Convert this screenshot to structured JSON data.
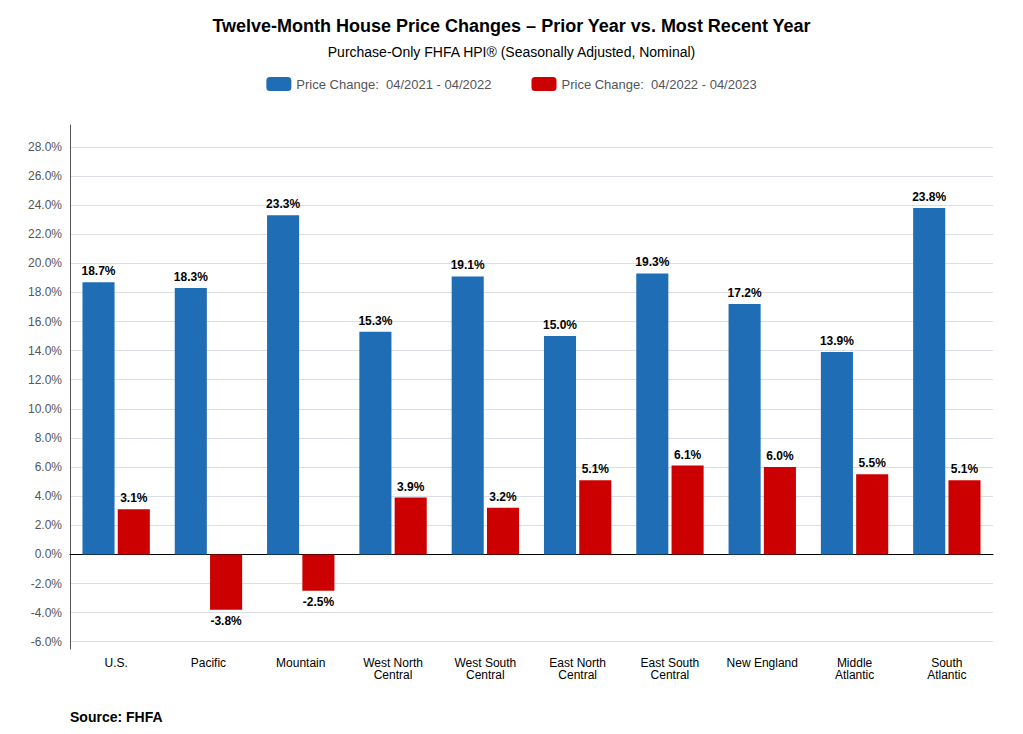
{
  "chart_data": {
    "type": "bar",
    "title": "Twelve-Month House Price Changes – Prior Year vs. Most Recent Year",
    "subtitle": "Purchase-Only FHFA HPI® (Seasonally Adjusted, Nominal)",
    "categories": [
      "U.S.",
      "Pacific",
      "Mountain",
      "West North\nCentral",
      "West South\nCentral",
      "East North\nCentral",
      "East South\nCentral",
      "New England",
      "Middle\nAtlantic",
      "South\nAtlantic"
    ],
    "series": [
      {
        "name": "Price Change:  04/2021 - 04/2022",
        "color": "#1f6db5",
        "values": [
          18.7,
          18.3,
          23.3,
          15.3,
          19.1,
          15.0,
          19.3,
          17.2,
          13.9,
          23.8
        ],
        "value_labels": [
          "18.7%",
          "18.3%",
          "23.3%",
          "15.3%",
          "19.1%",
          "15.0%",
          "19.3%",
          "17.2%",
          "13.9%",
          "23.8%"
        ]
      },
      {
        "name": "Price Change:  04/2022 - 04/2023",
        "color": "#cc0000",
        "values": [
          3.1,
          -3.8,
          -2.5,
          3.9,
          3.2,
          5.1,
          6.1,
          6.0,
          5.5,
          5.1
        ],
        "value_labels": [
          "3.1%",
          "-3.8%",
          "-2.5%",
          "3.9%",
          "3.2%",
          "5.1%",
          "6.1%",
          "6.0%",
          "5.5%",
          "5.1%"
        ]
      }
    ],
    "ylim": [
      -6.5,
      29.5
    ],
    "yticks": [
      {
        "value": -6.0,
        "label": "-6.0%"
      },
      {
        "value": -4.0,
        "label": "-4.0%"
      },
      {
        "value": -2.0,
        "label": "-2.0%"
      },
      {
        "value": 0.0,
        "label": "0.0%"
      },
      {
        "value": 2.0,
        "label": "2.0%"
      },
      {
        "value": 4.0,
        "label": "4.0%"
      },
      {
        "value": 6.0,
        "label": "6.0%"
      },
      {
        "value": 8.0,
        "label": "8.0%"
      },
      {
        "value": 10.0,
        "label": "10.0%"
      },
      {
        "value": 12.0,
        "label": "12.0%"
      },
      {
        "value": 14.0,
        "label": "14.0%"
      },
      {
        "value": 16.0,
        "label": "16.0%"
      },
      {
        "value": 18.0,
        "label": "18.0%"
      },
      {
        "value": 20.0,
        "label": "20.0%"
      },
      {
        "value": 22.0,
        "label": "22.0%"
      },
      {
        "value": 24.0,
        "label": "24.0%"
      },
      {
        "value": 26.0,
        "label": "26.0%"
      },
      {
        "value": 28.0,
        "label": "28.0%"
      }
    ],
    "grid": true,
    "legend": "top",
    "data_labels": true,
    "annotations": [
      "Source: FHFA"
    ]
  }
}
